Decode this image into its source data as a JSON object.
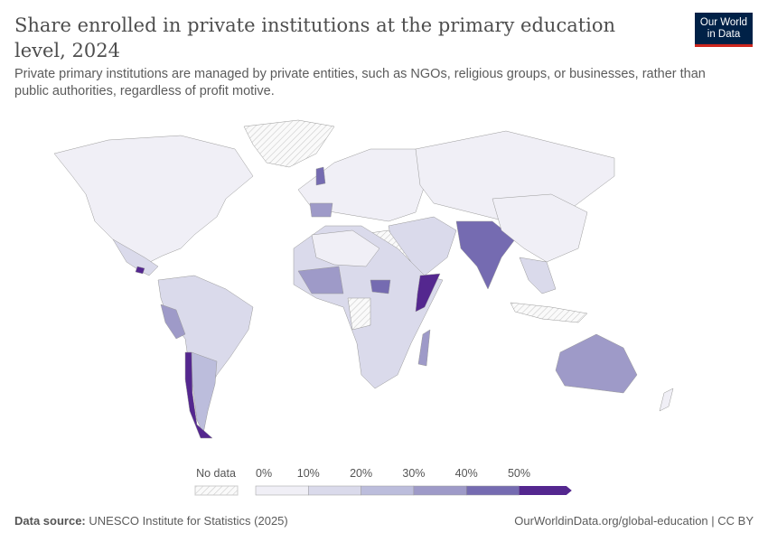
{
  "header": {
    "title": "Share enrolled in private institutions at the primary education level, 2024",
    "subtitle": "Private primary institutions are managed by private entities, such as NGOs, religious groups, or businesses, rather than public authorities, regardless of profit motive.",
    "logo": "Our World in Data"
  },
  "legend": {
    "no_data_label": "No data",
    "bins": [
      {
        "label": "0%",
        "color": "#f0eff6"
      },
      {
        "label": "10%",
        "color": "#dadaeb"
      },
      {
        "label": "20%",
        "color": "#bcbddc"
      },
      {
        "label": "30%",
        "color": "#9e9ac8"
      },
      {
        "label": "40%",
        "color": "#756bb1"
      },
      {
        "label": "50%",
        "color": "#54278f"
      }
    ]
  },
  "footer": {
    "source_label": "Data source:",
    "source": "UNESCO Institute for Statistics (2025)",
    "url": "OurWorldinData.org/global-education | CC BY"
  }
}
